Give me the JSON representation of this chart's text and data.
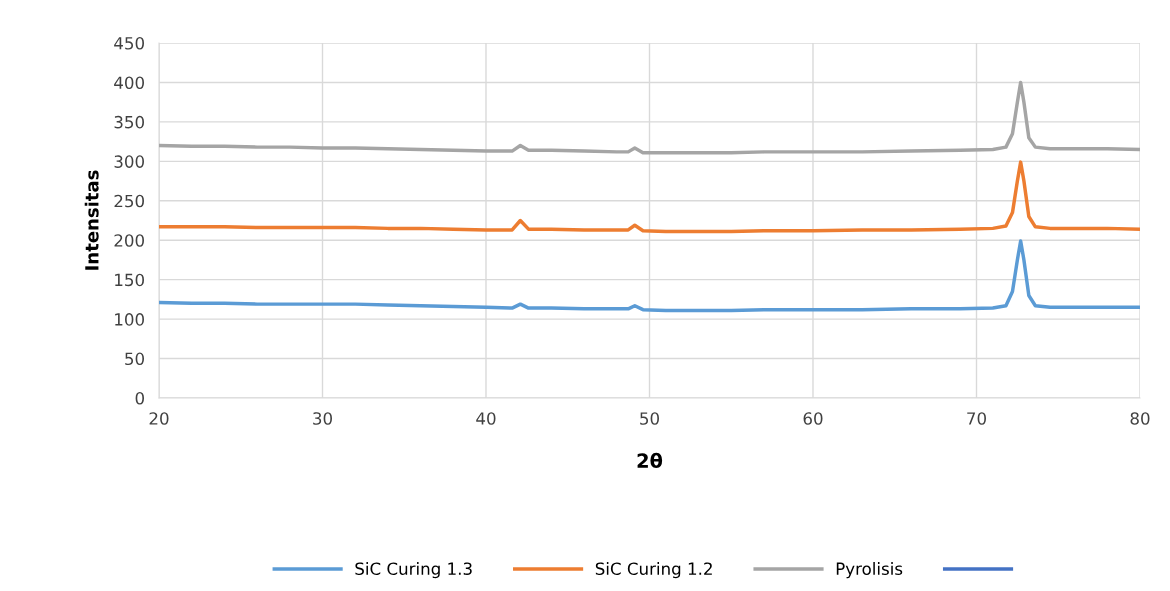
{
  "chart_data": {
    "type": "line",
    "xlabel": "2θ",
    "ylabel": "Intensitas",
    "x": [
      20,
      22,
      24,
      26,
      28,
      30,
      32,
      34,
      36,
      38,
      40,
      41.6,
      42.1,
      42.6,
      44,
      46,
      48,
      48.7,
      49.1,
      49.6,
      51,
      53,
      55,
      57,
      60,
      63,
      66,
      69,
      71,
      71.8,
      72.2,
      72.5,
      72.7,
      72.9,
      73.2,
      73.6,
      74.5,
      76,
      78,
      80
    ],
    "series": [
      {
        "name": "SiC Curing 1.3",
        "color": "#5b9bd5",
        "values": [
          121,
          120,
          120,
          119,
          119,
          119,
          119,
          118,
          117,
          116,
          115,
          114,
          119,
          114,
          114,
          113,
          113,
          113,
          117,
          112,
          111,
          111,
          111,
          112,
          112,
          112,
          113,
          113,
          114,
          117,
          135,
          175,
          199,
          175,
          130,
          117,
          115,
          115,
          115,
          115
        ]
      },
      {
        "name": "SiC Curing 1.2",
        "color": "#ed7d31",
        "values": [
          217,
          217,
          217,
          216,
          216,
          216,
          216,
          215,
          215,
          214,
          213,
          213,
          225,
          214,
          214,
          213,
          213,
          213,
          219,
          212,
          211,
          211,
          211,
          212,
          212,
          213,
          213,
          214,
          215,
          218,
          235,
          275,
          299,
          275,
          230,
          217,
          215,
          215,
          215,
          214
        ]
      },
      {
        "name": "Pyrolisis",
        "color": "#a5a5a5",
        "values": [
          320,
          319,
          319,
          318,
          318,
          317,
          317,
          316,
          315,
          314,
          313,
          313,
          320,
          314,
          314,
          313,
          312,
          312,
          317,
          311,
          311,
          311,
          311,
          312,
          312,
          312,
          313,
          314,
          315,
          318,
          335,
          375,
          400,
          375,
          330,
          318,
          316,
          316,
          316,
          315
        ]
      },
      {
        "color": "#4472c4",
        "values": [
          null,
          null,
          null,
          null,
          null,
          null,
          null,
          null,
          null,
          null,
          null,
          null,
          null,
          null,
          null,
          null,
          null,
          null,
          null,
          null,
          null,
          null,
          null,
          null,
          null,
          null,
          null,
          null,
          null,
          null,
          null,
          null,
          null,
          null,
          null,
          null,
          null,
          null,
          null,
          null
        ]
      }
    ],
    "xlim": [
      20,
      80
    ],
    "xticks": [
      20,
      30,
      40,
      50,
      60,
      70,
      80
    ],
    "ylim": [
      0,
      450
    ],
    "yticks": [
      0,
      50,
      100,
      150,
      200,
      250,
      300,
      350,
      400,
      450
    ],
    "grid": true,
    "legend": "bottom",
    "marker": "none",
    "line_style": "solid"
  }
}
